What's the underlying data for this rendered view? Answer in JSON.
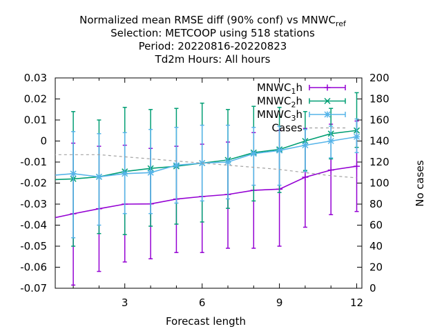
{
  "chart_data": {
    "type": "line",
    "title_lines": [
      [
        "Normalized mean RMSE diff (90% conf) vs MNWC",
        "ref"
      ],
      [
        "Selection: METCOOP using   518 stations"
      ],
      [
        "Period: 20220816-20220823"
      ],
      [
        "Td2m   Hours:  All hours"
      ]
    ],
    "xlabel": "Forecast length",
    "ylabel_right": "No cases",
    "xlim": [
      0.3,
      12.2
    ],
    "ylim": [
      -0.07,
      0.03
    ],
    "y2lim": [
      0,
      200
    ],
    "xticks": [
      3,
      6,
      9,
      12
    ],
    "yticks": [
      "-0.07",
      "-0.06",
      "-0.05",
      "-0.04",
      "-0.03",
      "-0.02",
      "-0.01",
      "0",
      "0.01",
      "0.02",
      "0.03"
    ],
    "y2ticks": [
      "0",
      "20",
      "40",
      "60",
      "80",
      "100",
      "120",
      "140",
      "160",
      "180",
      "200"
    ],
    "grid": false,
    "legend_position": "top-right",
    "series": [
      {
        "name": "MNWC",
        "name_sub": "1",
        "name_suffix": "h",
        "color": "#9400d3",
        "marker": "plus",
        "x": [
          0,
          1,
          2,
          3,
          4,
          5,
          6,
          7,
          8,
          9,
          10,
          11,
          12
        ],
        "y": [
          -0.0372,
          -0.0346,
          -0.0322,
          -0.03,
          -0.0299,
          -0.0276,
          -0.0264,
          -0.0254,
          -0.0234,
          -0.0229,
          -0.0172,
          -0.0138,
          -0.012
        ],
        "err_low": [
          -0.0695,
          -0.0685,
          -0.062,
          -0.0575,
          -0.056,
          -0.053,
          -0.053,
          -0.051,
          -0.051,
          -0.05,
          -0.041,
          -0.035,
          -0.0335
        ],
        "err_high": [
          -0.0035,
          -0.001,
          -0.0025,
          -0.002,
          -0.0035,
          -0.0025,
          -0.0015,
          -0.0005,
          0.004,
          0.005,
          0.006,
          0.008,
          0.0095
        ]
      },
      {
        "name": "MNWC",
        "name_sub": "2",
        "name_suffix": "h",
        "color": "#009e73",
        "marker": "x",
        "x": [
          0,
          1,
          2,
          3,
          4,
          5,
          6,
          7,
          8,
          9,
          10,
          11,
          12
        ],
        "y": [
          -0.0185,
          -0.018,
          -0.017,
          -0.0145,
          -0.013,
          -0.012,
          -0.0105,
          -0.009,
          -0.0055,
          -0.004,
          0.0,
          0.0035,
          0.005
        ],
        "err_low": [
          -0.05,
          -0.05,
          -0.044,
          -0.0445,
          -0.0405,
          -0.0395,
          -0.0385,
          -0.032,
          -0.0285,
          -0.0245,
          -0.014,
          -0.0085,
          -0.003
        ],
        "err_high": [
          0.013,
          0.014,
          0.01,
          0.016,
          0.015,
          0.0155,
          0.018,
          0.015,
          0.0165,
          0.016,
          0.014,
          0.0155,
          0.023
        ]
      },
      {
        "name": "MNWC",
        "name_sub": "3",
        "name_suffix": "h",
        "color": "#56b4e9",
        "marker": "star",
        "x": [
          0,
          1,
          2,
          3,
          4,
          5,
          6,
          7,
          8,
          9,
          10,
          11,
          12
        ],
        "y": [
          -0.0165,
          -0.0155,
          -0.017,
          -0.0155,
          -0.015,
          -0.0115,
          -0.0105,
          -0.01,
          -0.006,
          -0.0045,
          -0.002,
          0.0,
          0.002
        ],
        "err_low": [
          -0.047,
          -0.046,
          -0.04,
          -0.0345,
          -0.0345,
          -0.0295,
          -0.0285,
          -0.0275,
          -0.021,
          -0.021,
          -0.0145,
          -0.008,
          -0.0055
        ],
        "err_high": [
          0.012,
          0.0045,
          0.0035,
          0.004,
          0.0055,
          0.0065,
          0.0075,
          0.0075,
          0.0065,
          0.007,
          0.0055,
          0.007,
          0.0105
        ]
      },
      {
        "name": "Cases",
        "color": "#a0a0a0",
        "dashed": true,
        "axis": "y2",
        "x": [
          0,
          1,
          2,
          3,
          4,
          5,
          6,
          7,
          8,
          9,
          10,
          11,
          12
        ],
        "y": [
          127,
          127,
          127,
          125,
          123,
          121,
          119,
          117,
          115,
          113,
          110,
          107,
          105
        ]
      }
    ]
  }
}
